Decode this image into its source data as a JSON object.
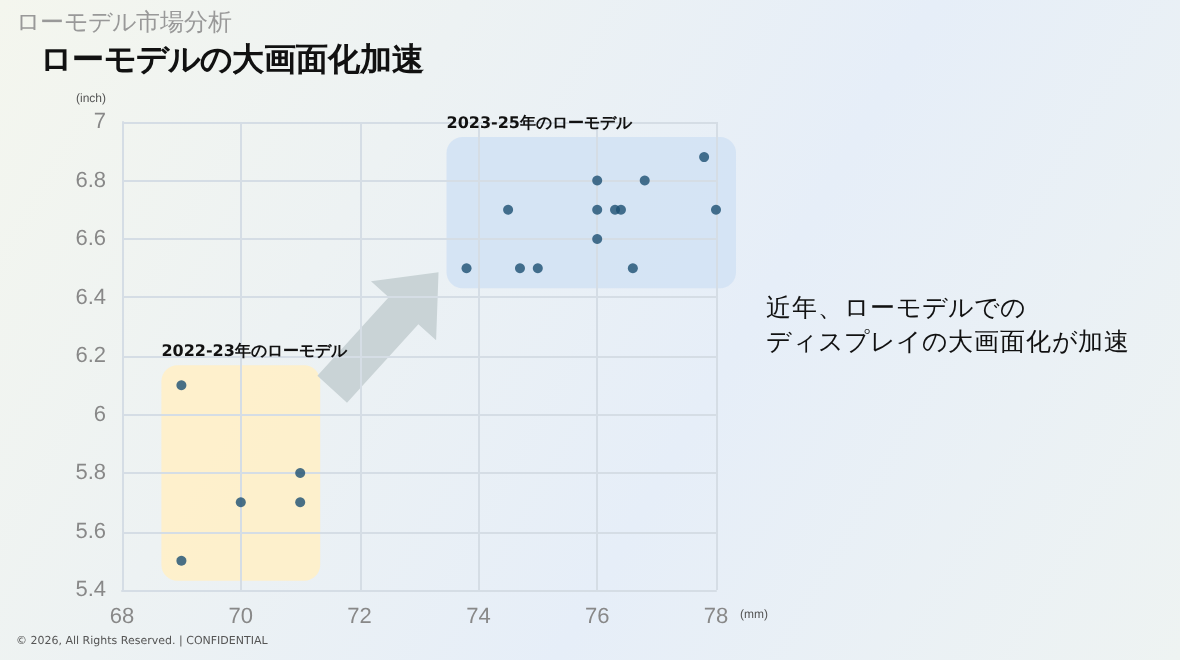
{
  "chart_data": {
    "type": "scatter",
    "title": "ローモデルの大画面化加速",
    "subtitle": "ローモデル市場分析",
    "xlabel": "(mm)",
    "ylabel": "(inch)",
    "series": [
      {
        "name": "2022-23年のローモデル",
        "color": "#1b4f72",
        "x": [
          69,
          70,
          71,
          71,
          69
        ],
        "values": [
          6.1,
          5.7,
          5.8,
          5.7,
          5.5
        ]
      },
      {
        "name": "2023-25年のローモデル",
        "color": "#1b4f72",
        "x": [
          73.8,
          74.5,
          74.7,
          75,
          76,
          76,
          76,
          76.3,
          76.4,
          76.6,
          76.8,
          77.8,
          78
        ],
        "values": [
          6.5,
          6.7,
          6.5,
          6.5,
          6.8,
          6.7,
          6.6,
          6.7,
          6.7,
          6.5,
          6.8,
          6.88,
          6.7
        ]
      }
    ],
    "xlim": [
      68,
      78
    ],
    "xticks": [
      68,
      70,
      72,
      74,
      76,
      78
    ],
    "ylim": [
      5.4,
      7
    ],
    "yticks": [
      5.4,
      5.6,
      5.8,
      6,
      6.2,
      6.4,
      6.6,
      6.8,
      7
    ],
    "grid": true,
    "marker": "circle",
    "legend": false,
    "annotations": [
      "近年、ローモデルでの",
      "ディスプレイの大画面化が加速",
      "© 2026, All Rights Reserved. | CONFIDENTIAL"
    ]
  }
}
